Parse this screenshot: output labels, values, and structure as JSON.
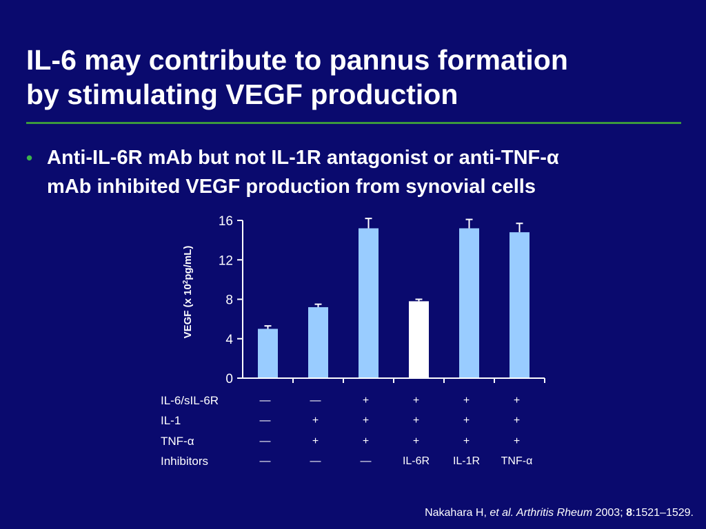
{
  "slide": {
    "title_lines": [
      "IL-6 may contribute to pannus formation",
      "by stimulating VEGF production"
    ],
    "bullet_lines": [
      "Anti-IL-6R mAb but not IL-1R antagonist or anti-TNF-α",
      "mAb inhibited VEGF production from synovial cells"
    ],
    "citation": {
      "author": "Nakahara H,",
      "etal_journal": "et al. Arthritis Rheum",
      "year": "2003;",
      "volume": "8",
      "pages": ":1521–1529."
    }
  },
  "chart_data": {
    "type": "bar",
    "ylabel": "VEGF (x 10",
    "ylabel_sup": "2",
    "ylabel_tail": "pg/mL)",
    "ylim": [
      0,
      16
    ],
    "yticks": [
      "0",
      "4",
      "8",
      "12",
      "16"
    ],
    "values": [
      5.0,
      7.2,
      15.2,
      7.8,
      15.2,
      14.8
    ],
    "errors": [
      0.3,
      0.3,
      1.0,
      0.2,
      0.9,
      0.9
    ],
    "bar_colors": [
      "#99ccff",
      "#99ccff",
      "#99ccff",
      "#ffffff",
      "#99ccff",
      "#99ccff"
    ],
    "conditions": [
      {
        "label": "IL-6/sIL-6R",
        "values": [
          "—",
          "—",
          "+",
          "+",
          "+",
          "+"
        ]
      },
      {
        "label": "IL-1",
        "values": [
          "—",
          "+",
          "+",
          "+",
          "+",
          "+"
        ]
      },
      {
        "label": "TNF-α",
        "values": [
          "—",
          "+",
          "+",
          "+",
          "+",
          "+"
        ]
      },
      {
        "label": "Inhibitors",
        "values": [
          "—",
          "—",
          "—",
          "IL-6R",
          "IL-1R",
          "TNF-α"
        ]
      }
    ]
  }
}
